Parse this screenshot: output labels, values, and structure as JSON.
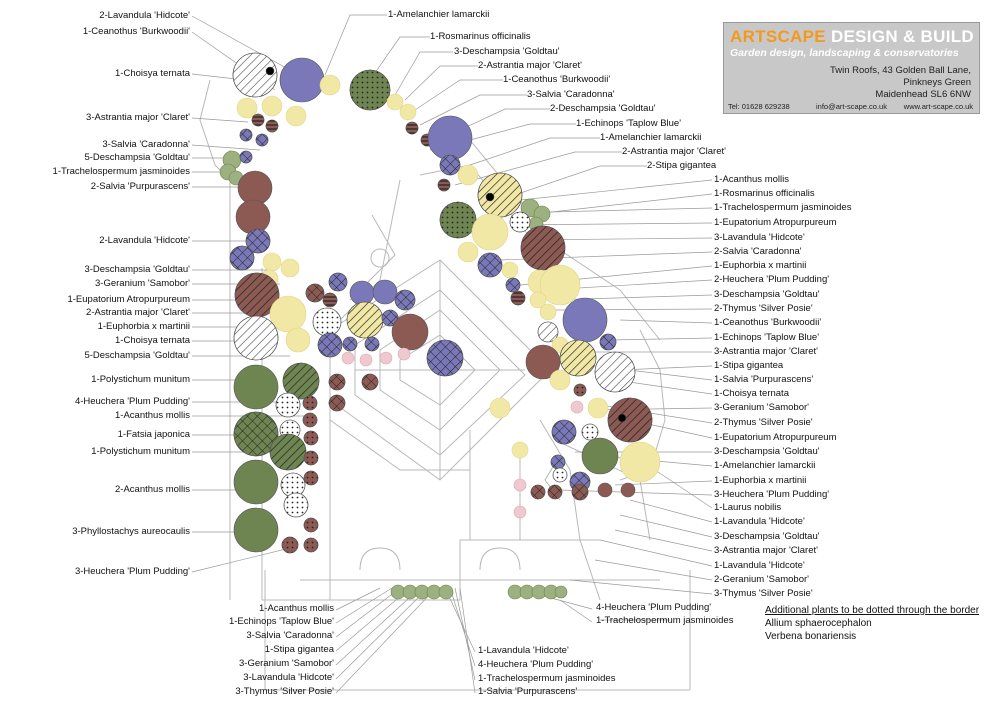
{
  "colors": {
    "blue": "#7a78b8",
    "green": "#6e8551",
    "brown": "#8c5a52",
    "yellow": "#f2e8a6",
    "pink": "#f0c8d0",
    "grey": "#c2c2c2",
    "foliage": "#9cb080",
    "linework": "#b4b4b4"
  },
  "titlebox": {
    "brand_part1": "ARTSCAPE",
    "brand_part2": " DESIGN & BUILD",
    "tagline": "Garden design, landscaping & conservatories",
    "address_line1": "Twin Roofs, 43 Golden Ball Lane,",
    "address_line2": "Pinkneys Green",
    "address_line3": "Maidenhead SL6 6NW",
    "tel": "Tel: 01628 629238",
    "email": "info@art-scape.co.uk",
    "web": "www.art-scape.co.uk"
  },
  "additional": {
    "title": "Additional plants to be dotted through the border",
    "items": [
      "Allium sphaerocephalon",
      "Verbena bonariensis"
    ]
  },
  "labels_left": [
    "2-Lavandula 'Hidcote'",
    "1-Ceanothus 'Burkwoodii'",
    "1-Choisya ternata",
    "3-Astrantia major 'Claret'",
    "3-Salvia 'Caradonna'",
    "5-Deschampsia 'Goldtau'",
    "1-Trachelospermum jasminoides",
    "2-Salvia 'Purpurascens'",
    "2-Lavandula 'Hidcote'",
    "3-Deschampsia 'Goldtau'",
    "3-Geranium 'Samobor'",
    "1-Eupatorium Atropurpureum",
    "2-Astrantia major 'Claret'",
    "1-Euphorbia x martinii",
    "1-Choisya ternata",
    "5-Deschampsia 'Goldtau'",
    "1-Polystichum munitum",
    "4-Heuchera 'Plum Pudding'",
    "1-Acanthus mollis",
    "1-Fatsia japonica",
    "1-Polystichum munitum",
    "2-Acanthus mollis",
    "3-Phyllostachys aureocaulis",
    "3-Heuchera 'Plum Pudding'"
  ],
  "labels_top": [
    "1-Amelanchier lamarckii",
    "1-Rosmarinus officinalis",
    "3-Deschampsia 'Goldtau'",
    "2-Astrantia major 'Claret'",
    "1-Ceanothus 'Burkwoodii'",
    "3-Salvia 'Caradonna'",
    "2-Deschampsia 'Goldtau'",
    "1-Echinops 'Taplow Blue'",
    "1-Amelanchier lamarckii",
    "2-Astrantia major 'Claret'",
    "2-Stipa gigantea"
  ],
  "labels_right": [
    "1-Acanthus mollis",
    "1-Rosmarinus officinalis",
    "1-Trachelospermum jasminoides",
    "1-Eupatorium Atropurpureum",
    "3-Lavandula 'Hidcote'",
    "2-Salvia 'Caradonna'",
    "1-Euphorbia x martinii",
    "2-Heuchera 'Plum Pudding'",
    "3-Deschampsia 'Goldtau'",
    "2-Thymus 'Silver Posie'",
    "1-Ceanothus 'Burkwoodii'",
    "1-Echinops 'Taplow Blue'",
    "3-Astrantia major 'Claret'",
    "1-Stipa gigantea",
    "1-Salvia 'Purpurascens'",
    "1-Choisya ternata",
    "3-Geranium 'Samobor'",
    "2-Thymus 'Silver Posie'",
    "1-Eupatorium Atropurpureum",
    "3-Deschampsia 'Goldtau'",
    "1-Amelanchier lamarckii",
    "1-Euphorbia x martinii",
    "3-Heuchera 'Plum Pudding'",
    "1-Laurus nobilis",
    "1-Lavandula 'Hidcote'",
    "3-Deschampsia 'Goldtau'",
    "3-Astrantia major 'Claret'",
    "1-Lavandula 'Hidcote'",
    "2-Geranium 'Samobor'",
    "3-Thymus 'Silver Posie'"
  ],
  "labels_bottom_left": [
    "1-Acanthus mollis",
    "1-Echinops 'Taplow Blue'",
    "3-Salvia 'Caradonna'",
    "1-Stipa gigantea",
    "3-Geranium 'Samobor'",
    "3-Lavandula 'Hidcote'",
    "3-Thymus 'Silver Posie'"
  ],
  "labels_bottom_mid": [
    "1-Lavandula 'Hidcote'",
    "4-Heuchera 'Plum Pudding'",
    "1-Trachelospermum jasminoides",
    "1-Salvia 'Purpurascens'"
  ],
  "labels_bottom_right": [
    "4-Heuchera 'Plum Pudding'",
    "1-Trachelospermum jasminoides"
  ]
}
